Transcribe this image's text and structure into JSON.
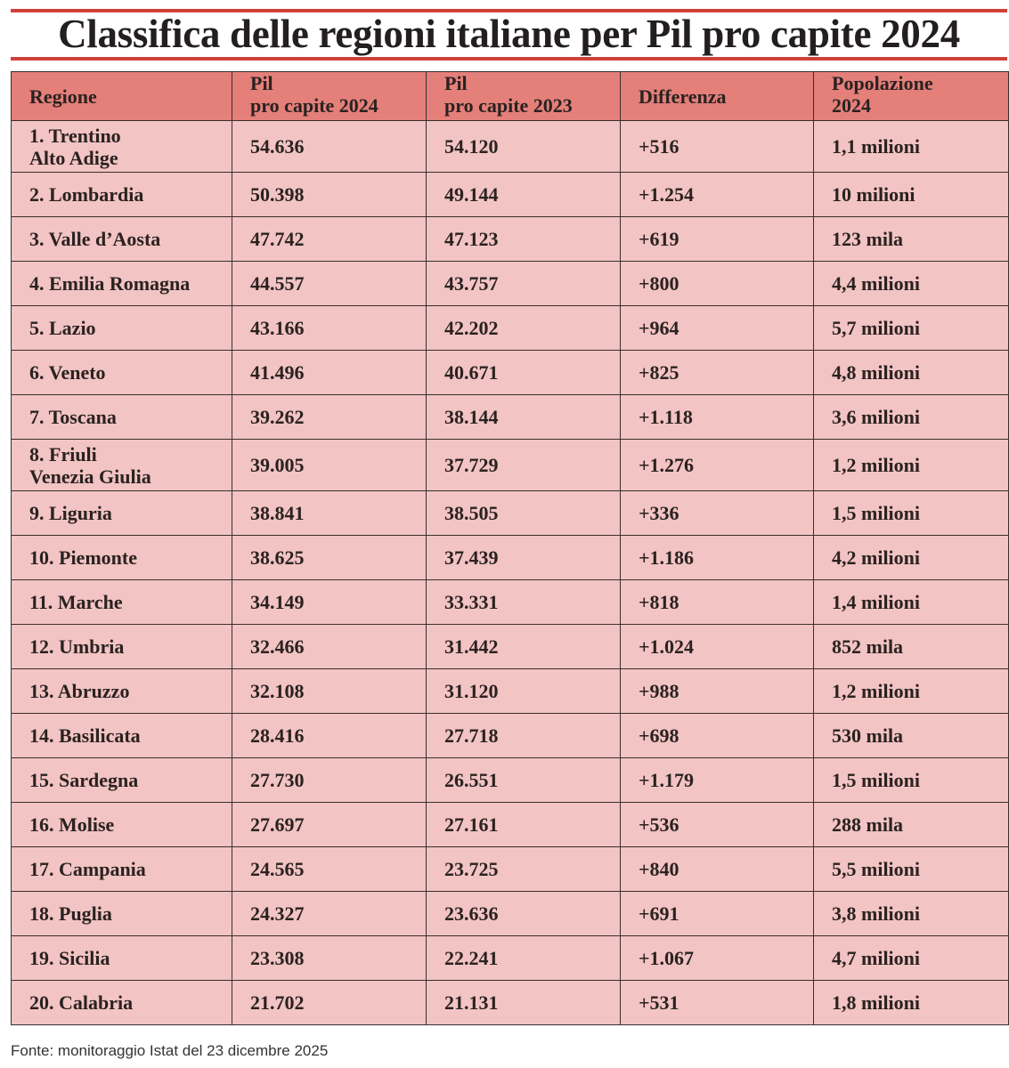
{
  "title": "Classifica delle regioni italiane per Pil pro capite 2024",
  "accent_color": "#d0403a",
  "header_color": "#e47f7a",
  "row_color": "#f2c4c3",
  "columns": [
    {
      "line1": "Regione",
      "line2": ""
    },
    {
      "line1": "Pil",
      "line2": "pro capite 2024"
    },
    {
      "line1": "Pil",
      "line2": "pro capite 2023"
    },
    {
      "line1": "Differenza",
      "line2": ""
    },
    {
      "line1": "Popolazione",
      "line2": "2024"
    }
  ],
  "rows": [
    {
      "region": "1. Trentino",
      "region2": "Alto Adige",
      "pil2024": "54.636",
      "pil2023": "54.120",
      "diff": "+516",
      "pop": "1,1 milioni"
    },
    {
      "region": "2. Lombardia",
      "pil2024": "50.398",
      "pil2023": "49.144",
      "diff": "+1.254",
      "pop": "10 milioni"
    },
    {
      "region": "3. Valle d’Aosta",
      "pil2024": "47.742",
      "pil2023": "47.123",
      "diff": "+619",
      "pop": "123 mila"
    },
    {
      "region": "4. Emilia Romagna",
      "pil2024": "44.557",
      "pil2023": "43.757",
      "diff": "+800",
      "pop": "4,4 milioni"
    },
    {
      "region": "5. Lazio",
      "pil2024": "43.166",
      "pil2023": "42.202",
      "diff": "+964",
      "pop": "5,7 milioni"
    },
    {
      "region": "6. Veneto",
      "pil2024": "41.496",
      "pil2023": "40.671",
      "diff": "+825",
      "pop": "4,8 milioni"
    },
    {
      "region": "7. Toscana",
      "pil2024": "39.262",
      "pil2023": "38.144",
      "diff": "+1.118",
      "pop": "3,6 milioni"
    },
    {
      "region": "8. Friuli",
      "region2": "Venezia Giulia",
      "pil2024": "39.005",
      "pil2023": "37.729",
      "diff": "+1.276",
      "pop": "1,2 milioni"
    },
    {
      "region": "9. Liguria",
      "pil2024": "38.841",
      "pil2023": "38.505",
      "diff": "+336",
      "pop": "1,5 milioni"
    },
    {
      "region": "10. Piemonte",
      "pil2024": "38.625",
      "pil2023": "37.439",
      "diff": "+1.186",
      "pop": "4,2 milioni"
    },
    {
      "region": "11. Marche",
      "pil2024": "34.149",
      "pil2023": "33.331",
      "diff": "+818",
      "pop": "1,4 milioni"
    },
    {
      "region": "12. Umbria",
      "pil2024": "32.466",
      "pil2023": "31.442",
      "diff": "+1.024",
      "pop": "852 mila"
    },
    {
      "region": "13. Abruzzo",
      "pil2024": "32.108",
      "pil2023": "31.120",
      "diff": "+988",
      "pop": "1,2 milioni"
    },
    {
      "region": "14. Basilicata",
      "pil2024": "28.416",
      "pil2023": "27.718",
      "diff": "+698",
      "pop": "530 mila"
    },
    {
      "region": "15. Sardegna",
      "pil2024": "27.730",
      "pil2023": "26.551",
      "diff": "+1.179",
      "pop": "1,5 milioni"
    },
    {
      "region": "16. Molise",
      "pil2024": "27.697",
      "pil2023": "27.161",
      "diff": "+536",
      "pop": "288 mila"
    },
    {
      "region": "17. Campania",
      "pil2024": "24.565",
      "pil2023": "23.725",
      "diff": "+840",
      "pop": "5,5 milioni"
    },
    {
      "region": "18. Puglia",
      "pil2024": "24.327",
      "pil2023": "23.636",
      "diff": "+691",
      "pop": "3,8 milioni"
    },
    {
      "region": "19. Sicilia",
      "pil2024": "23.308",
      "pil2023": "22.241",
      "diff": "+1.067",
      "pop": "4,7 milioni"
    },
    {
      "region": "20. Calabria",
      "pil2024": "21.702",
      "pil2023": "21.131",
      "diff": "+531",
      "pop": "1,8 milioni"
    }
  ],
  "source": "Fonte: monitoraggio Istat del 23 dicembre 2025"
}
